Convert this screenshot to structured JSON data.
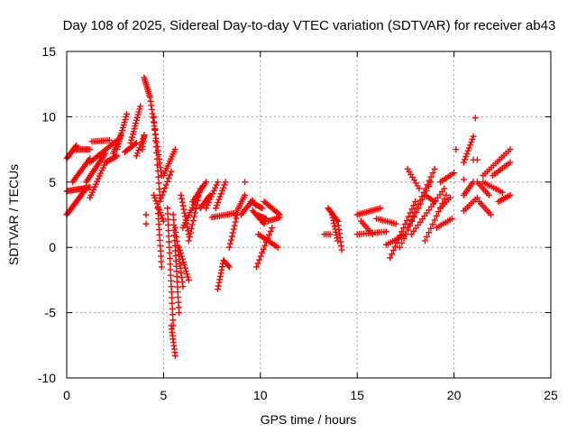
{
  "chart_data": {
    "type": "scatter",
    "title": "Day 108 of 2025, Sidereal Day-to-day VTEC variation (SDTVAR) for receiver ab43",
    "xlabel": "GPS time / hours",
    "ylabel": "SDTVAR / TECUs",
    "xlim": [
      0,
      25
    ],
    "ylim": [
      -10,
      15
    ],
    "xticks": [
      0,
      5,
      10,
      15,
      20,
      25
    ],
    "yticks": [
      -10,
      -5,
      0,
      5,
      10,
      15
    ],
    "grid": true,
    "marker": "plus",
    "color": "#ff0000",
    "segments": [
      {
        "x0": 0.0,
        "y0": 2.5,
        "x1": 1.0,
        "y1": 4.5,
        "n": 22
      },
      {
        "x0": 0.0,
        "y0": 4.3,
        "x1": 1.2,
        "y1": 4.6,
        "n": 18
      },
      {
        "x0": 0.0,
        "y0": 6.8,
        "x1": 0.5,
        "y1": 7.8,
        "n": 12
      },
      {
        "x0": 0.5,
        "y0": 7.5,
        "x1": 1.2,
        "y1": 7.5,
        "n": 10
      },
      {
        "x0": 0.3,
        "y0": 5.0,
        "x1": 1.2,
        "y1": 6.8,
        "n": 16
      },
      {
        "x0": 1.0,
        "y0": 5.0,
        "x1": 2.0,
        "y1": 7.2,
        "n": 18
      },
      {
        "x0": 1.2,
        "y0": 3.8,
        "x1": 2.0,
        "y1": 6.5,
        "n": 14
      },
      {
        "x0": 1.2,
        "y0": 6.5,
        "x1": 2.6,
        "y1": 8.2,
        "n": 18
      },
      {
        "x0": 1.3,
        "y0": 8.1,
        "x1": 2.2,
        "y1": 8.2,
        "n": 10
      },
      {
        "x0": 2.0,
        "y0": 6.5,
        "x1": 2.6,
        "y1": 7.0,
        "n": 10
      },
      {
        "x0": 2.4,
        "y0": 7.2,
        "x1": 2.8,
        "y1": 8.6,
        "n": 10
      },
      {
        "x0": 2.6,
        "y0": 7.5,
        "x1": 3.1,
        "y1": 10.2,
        "n": 14
      },
      {
        "x0": 3.0,
        "y0": 7.3,
        "x1": 3.6,
        "y1": 8.0,
        "n": 10
      },
      {
        "x0": 3.3,
        "y0": 8.0,
        "x1": 3.8,
        "y1": 10.8,
        "n": 14
      },
      {
        "x0": 3.6,
        "y0": 7.0,
        "x1": 4.0,
        "y1": 8.5,
        "n": 8
      },
      {
        "x0": 3.9,
        "y0": 7.5,
        "x1": 4.0,
        "y1": 8.6,
        "n": 6
      },
      {
        "x0": 4.0,
        "y0": 13.0,
        "x1": 4.3,
        "y1": 11.5,
        "n": 12
      },
      {
        "x0": 4.3,
        "y0": 11.5,
        "x1": 4.9,
        "y1": 5.5,
        "n": 20
      },
      {
        "x0": 4.5,
        "y0": 10.0,
        "x1": 4.8,
        "y1": 4.0,
        "n": 14
      },
      {
        "x0": 4.5,
        "y0": 4.0,
        "x1": 5.0,
        "y1": 2.0,
        "n": 10
      },
      {
        "x0": 4.7,
        "y0": 3.0,
        "x1": 4.9,
        "y1": -1.5,
        "n": 12
      },
      {
        "x0": 5.0,
        "y0": 5.5,
        "x1": 5.6,
        "y1": 7.5,
        "n": 12
      },
      {
        "x0": 4.8,
        "y0": 3.5,
        "x1": 5.4,
        "y1": 5.8,
        "n": 10
      },
      {
        "x0": 5.2,
        "y0": 3.0,
        "x1": 5.5,
        "y1": -6.0,
        "n": 22
      },
      {
        "x0": 5.4,
        "y0": -6.0,
        "x1": 5.6,
        "y1": -8.3,
        "n": 10
      },
      {
        "x0": 5.5,
        "y0": 2.5,
        "x1": 5.8,
        "y1": -5.0,
        "n": 20
      },
      {
        "x0": 5.6,
        "y0": 1.5,
        "x1": 6.0,
        "y1": -3.0,
        "n": 14
      },
      {
        "x0": 5.8,
        "y0": 0.0,
        "x1": 6.3,
        "y1": -2.5,
        "n": 12
      },
      {
        "x0": 5.9,
        "y0": 4.0,
        "x1": 6.3,
        "y1": 1.0,
        "n": 12
      },
      {
        "x0": 6.0,
        "y0": 1.5,
        "x1": 6.8,
        "y1": 4.0,
        "n": 14
      },
      {
        "x0": 6.3,
        "y0": 0.5,
        "x1": 6.9,
        "y1": 4.5,
        "n": 14
      },
      {
        "x0": 6.5,
        "y0": 3.5,
        "x1": 7.2,
        "y1": 5.0,
        "n": 12
      },
      {
        "x0": 6.9,
        "y0": 3.0,
        "x1": 7.4,
        "y1": 4.0,
        "n": 10
      },
      {
        "x0": 7.2,
        "y0": 3.0,
        "x1": 7.8,
        "y1": 5.0,
        "n": 10
      },
      {
        "x0": 7.7,
        "y0": 3.0,
        "x1": 8.2,
        "y1": 5.0,
        "n": 10
      },
      {
        "x0": 7.5,
        "y0": 2.3,
        "x1": 8.6,
        "y1": 2.6,
        "n": 12
      },
      {
        "x0": 7.8,
        "y0": -3.2,
        "x1": 8.1,
        "y1": -1.0,
        "n": 10
      },
      {
        "x0": 8.1,
        "y0": -1.0,
        "x1": 8.4,
        "y1": -1.5,
        "n": 6
      },
      {
        "x0": 8.4,
        "y0": 0.0,
        "x1": 8.8,
        "y1": 2.5,
        "n": 10
      },
      {
        "x0": 8.7,
        "y0": 2.5,
        "x1": 9.2,
        "y1": 4.0,
        "n": 10
      },
      {
        "x0": 9.0,
        "y0": 2.5,
        "x1": 9.6,
        "y1": 3.6,
        "n": 10
      },
      {
        "x0": 9.5,
        "y0": 3.5,
        "x1": 10.1,
        "y1": 3.0,
        "n": 10
      },
      {
        "x0": 9.6,
        "y0": 2.8,
        "x1": 10.2,
        "y1": 1.8,
        "n": 10
      },
      {
        "x0": 9.8,
        "y0": 2.5,
        "x1": 10.3,
        "y1": 2.2,
        "n": 8
      },
      {
        "x0": 9.8,
        "y0": -1.5,
        "x1": 10.6,
        "y1": 1.5,
        "n": 12
      },
      {
        "x0": 9.9,
        "y0": 1.0,
        "x1": 10.9,
        "y1": 0.0,
        "n": 12
      },
      {
        "x0": 10.2,
        "y0": 3.5,
        "x1": 11.0,
        "y1": 2.5,
        "n": 12
      },
      {
        "x0": 10.4,
        "y0": 2.0,
        "x1": 11.0,
        "y1": 2.3,
        "n": 8
      },
      {
        "x0": 13.5,
        "y0": 3.0,
        "x1": 14.0,
        "y1": 2.0,
        "n": 10
      },
      {
        "x0": 13.3,
        "y0": 1.0,
        "x1": 13.6,
        "y1": 1.0,
        "n": 4
      },
      {
        "x0": 13.7,
        "y0": 2.5,
        "x1": 14.0,
        "y1": 0.5,
        "n": 10
      },
      {
        "x0": 14.0,
        "y0": 2.0,
        "x1": 14.2,
        "y1": -0.2,
        "n": 8
      },
      {
        "x0": 15.0,
        "y0": 2.5,
        "x1": 16.2,
        "y1": 3.0,
        "n": 14
      },
      {
        "x0": 15.0,
        "y0": 1.0,
        "x1": 16.5,
        "y1": 1.2,
        "n": 14
      },
      {
        "x0": 15.2,
        "y0": 2.0,
        "x1": 15.8,
        "y1": 1.0,
        "n": 8
      },
      {
        "x0": 16.0,
        "y0": 2.2,
        "x1": 17.0,
        "y1": 1.8,
        "n": 10
      },
      {
        "x0": 16.5,
        "y0": 0.2,
        "x1": 17.5,
        "y1": 1.0,
        "n": 10
      },
      {
        "x0": 16.7,
        "y0": -0.8,
        "x1": 18.0,
        "y1": 3.5,
        "n": 16
      },
      {
        "x0": 17.2,
        "y0": 0.0,
        "x1": 18.8,
        "y1": 5.0,
        "n": 16
      },
      {
        "x0": 17.6,
        "y0": 1.5,
        "x1": 19.0,
        "y1": 6.0,
        "n": 16
      },
      {
        "x0": 17.8,
        "y0": 1.0,
        "x1": 19.5,
        "y1": 4.5,
        "n": 16
      },
      {
        "x0": 17.6,
        "y0": 6.0,
        "x1": 18.2,
        "y1": 4.5,
        "n": 8
      },
      {
        "x0": 18.5,
        "y0": 0.5,
        "x1": 19.6,
        "y1": 4.0,
        "n": 12
      },
      {
        "x0": 18.5,
        "y0": 4.0,
        "x1": 19.0,
        "y1": 3.5,
        "n": 6
      },
      {
        "x0": 19.1,
        "y0": 1.5,
        "x1": 19.9,
        "y1": 2.2,
        "n": 8
      },
      {
        "x0": 19.3,
        "y0": 5.0,
        "x1": 20.0,
        "y1": 5.7,
        "n": 8
      },
      {
        "x0": 19.3,
        "y0": 3.0,
        "x1": 19.8,
        "y1": 3.8,
        "n": 6
      },
      {
        "x0": 20.5,
        "y0": 6.5,
        "x1": 21.0,
        "y1": 8.5,
        "n": 10
      },
      {
        "x0": 20.5,
        "y0": 2.8,
        "x1": 21.2,
        "y1": 3.8,
        "n": 8
      },
      {
        "x0": 20.5,
        "y0": 4.0,
        "x1": 21.0,
        "y1": 5.0,
        "n": 8
      },
      {
        "x0": 21.0,
        "y0": 6.7,
        "x1": 21.2,
        "y1": 6.7,
        "n": 2
      },
      {
        "x0": 21.2,
        "y0": 5.0,
        "x1": 21.8,
        "y1": 4.0,
        "n": 8
      },
      {
        "x0": 21.3,
        "y0": 3.5,
        "x1": 21.9,
        "y1": 2.5,
        "n": 8
      },
      {
        "x0": 21.5,
        "y0": 5.5,
        "x1": 22.9,
        "y1": 7.5,
        "n": 14
      },
      {
        "x0": 21.5,
        "y0": 5.0,
        "x1": 22.5,
        "y1": 4.2,
        "n": 10
      },
      {
        "x0": 22.0,
        "y0": 5.5,
        "x1": 22.9,
        "y1": 6.5,
        "n": 10
      },
      {
        "x0": 22.3,
        "y0": 3.5,
        "x1": 22.9,
        "y1": 4.0,
        "n": 8
      }
    ],
    "points": [
      {
        "x": 21.1,
        "y": 9.9
      },
      {
        "x": 4.1,
        "y": 2.5
      },
      {
        "x": 4.1,
        "y": 1.8
      },
      {
        "x": 20.1,
        "y": 7.5
      },
      {
        "x": 20.5,
        "y": 5.2
      },
      {
        "x": 9.2,
        "y": 5.0
      }
    ]
  }
}
